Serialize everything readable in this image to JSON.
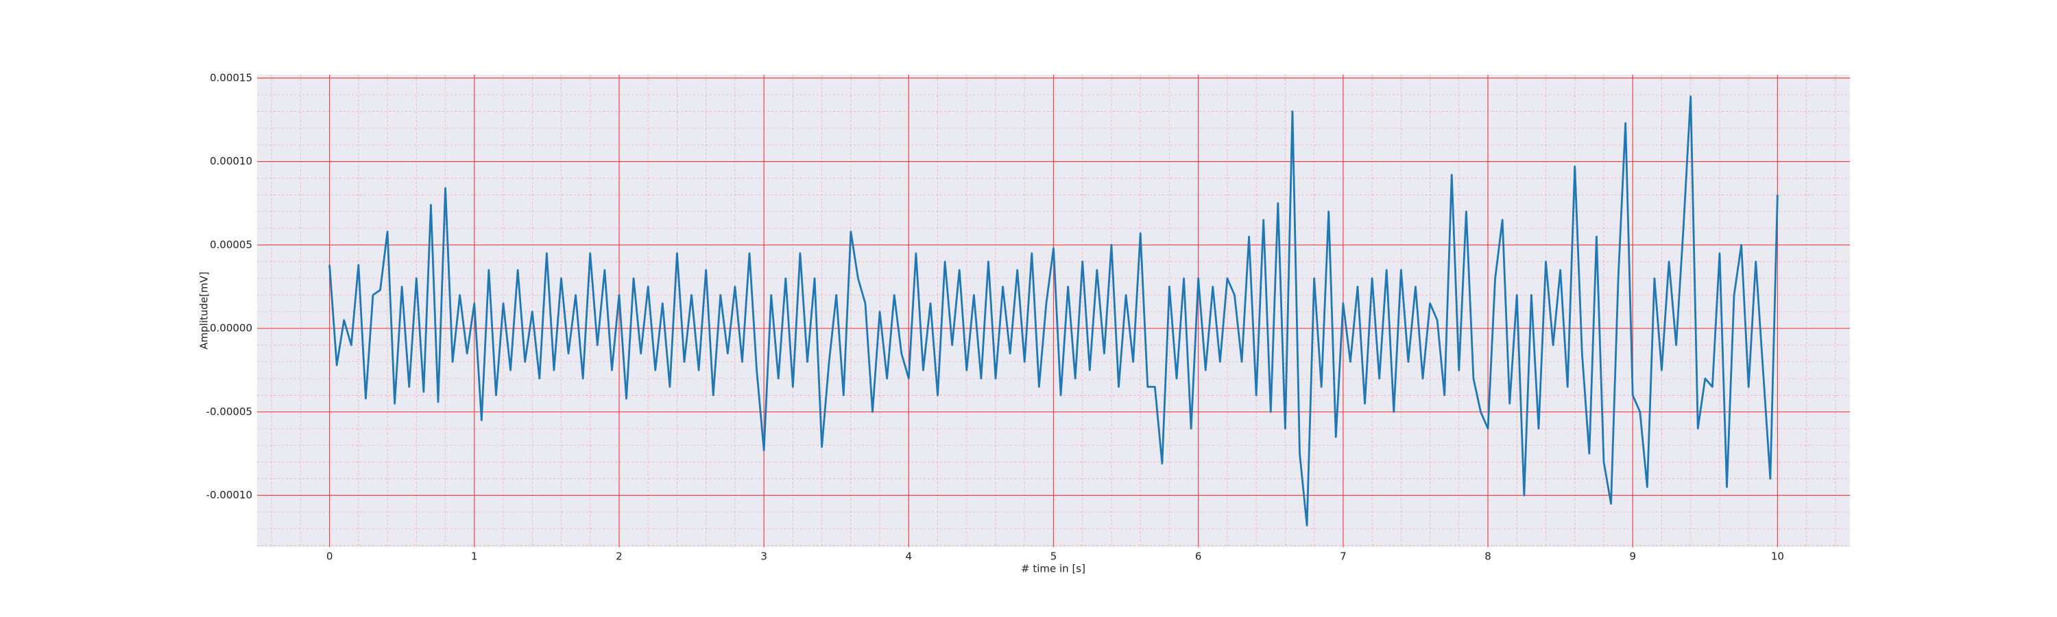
{
  "chart_data": {
    "type": "line",
    "xlabel": "# time in [s]",
    "ylabel": "Amplitude[mV]",
    "color": "#1f77b4",
    "grid": true,
    "minor_grid": true,
    "xlim": [
      -0.5,
      10.5
    ],
    "xticks": [
      0,
      1,
      2,
      3,
      4,
      5,
      6,
      7,
      8,
      9,
      10
    ],
    "ylim": [
      -0.000131,
      0.000152
    ],
    "yticks": [
      {
        "value": -0.0001,
        "label": "-0.00010"
      },
      {
        "value": -5e-05,
        "label": "-0.00005"
      },
      {
        "value": 0,
        "label": "0.00000"
      },
      {
        "value": 5e-05,
        "label": "0.00005"
      },
      {
        "value": 0.0001,
        "label": "0.00010"
      },
      {
        "value": 0.00015,
        "label": "0.00015"
      }
    ],
    "x": [
      0,
      0.05,
      0.1,
      0.15,
      0.2,
      0.25,
      0.3,
      0.35,
      0.4,
      0.45,
      0.5,
      0.55,
      0.6,
      0.65,
      0.7,
      0.75,
      0.8,
      0.85,
      0.9,
      0.95,
      1,
      1.05,
      1.1,
      1.15,
      1.2,
      1.25,
      1.3,
      1.35,
      1.4,
      1.45,
      1.5,
      1.55,
      1.6,
      1.65,
      1.7,
      1.75,
      1.8,
      1.85,
      1.9,
      1.95,
      2,
      2.05,
      2.1,
      2.15,
      2.2,
      2.25,
      2.3,
      2.35,
      2.4,
      2.45,
      2.5,
      2.55,
      2.6,
      2.65,
      2.7,
      2.75,
      2.8,
      2.85,
      2.9,
      2.95,
      3,
      3.05,
      3.1,
      3.15,
      3.2,
      3.25,
      3.3,
      3.35,
      3.4,
      3.45,
      3.5,
      3.55,
      3.6,
      3.65,
      3.7,
      3.75,
      3.8,
      3.85,
      3.9,
      3.95,
      4,
      4.05,
      4.1,
      4.15,
      4.2,
      4.25,
      4.3,
      4.35,
      4.4,
      4.45,
      4.5,
      4.55,
      4.6,
      4.65,
      4.7,
      4.75,
      4.8,
      4.85,
      4.9,
      4.95,
      5,
      5.05,
      5.1,
      5.15,
      5.2,
      5.25,
      5.3,
      5.35,
      5.4,
      5.45,
      5.5,
      5.55,
      5.6,
      5.65,
      5.7,
      5.75,
      5.8,
      5.85,
      5.9,
      5.95,
      6,
      6.05,
      6.1,
      6.15,
      6.2,
      6.25,
      6.3,
      6.35,
      6.4,
      6.45,
      6.5,
      6.55,
      6.6,
      6.65,
      6.7,
      6.75,
      6.8,
      6.85,
      6.9,
      6.95,
      7,
      7.05,
      7.1,
      7.15,
      7.2,
      7.25,
      7.3,
      7.35,
      7.4,
      7.45,
      7.5,
      7.55,
      7.6,
      7.65,
      7.7,
      7.75,
      7.8,
      7.85,
      7.9,
      7.95,
      8,
      8.05,
      8.1,
      8.15,
      8.2,
      8.25,
      8.3,
      8.35,
      8.4,
      8.45,
      8.5,
      8.55,
      8.6,
      8.65,
      8.7,
      8.75,
      8.8,
      8.85,
      8.9,
      8.95,
      9,
      9.05,
      9.1,
      9.15,
      9.2,
      9.25,
      9.3,
      9.35,
      9.4,
      9.45,
      9.5,
      9.55,
      9.6,
      9.65,
      9.7,
      9.75,
      9.8,
      9.85,
      9.9,
      9.95,
      10
    ],
    "values": [
      3.8e-05,
      -2.2e-05,
      5e-06,
      -1e-05,
      3.8e-05,
      -4.2e-05,
      2e-05,
      2.3e-05,
      5.8e-05,
      -4.5e-05,
      2.5e-05,
      -3.5e-05,
      3e-05,
      -3.8e-05,
      7.4e-05,
      -4.4e-05,
      8.4e-05,
      -2e-05,
      2e-05,
      -1.5e-05,
      1.5e-05,
      -5.5e-05,
      3.5e-05,
      -4e-05,
      1.5e-05,
      -2.5e-05,
      3.5e-05,
      -2e-05,
      1e-05,
      -3e-05,
      4.5e-05,
      -2.5e-05,
      3e-05,
      -1.5e-05,
      2e-05,
      -3e-05,
      4.5e-05,
      -1e-05,
      3.5e-05,
      -2.5e-05,
      2e-05,
      -4.2e-05,
      3e-05,
      -1.5e-05,
      2.5e-05,
      -2.5e-05,
      1.5e-05,
      -3.5e-05,
      4.5e-05,
      -2e-05,
      2e-05,
      -2.5e-05,
      3.5e-05,
      -4e-05,
      2e-05,
      -1.5e-05,
      2.5e-05,
      -2e-05,
      4.5e-05,
      -2.5e-05,
      -7.3e-05,
      2e-05,
      -3e-05,
      3e-05,
      -3.5e-05,
      4.5e-05,
      -2e-05,
      3e-05,
      -7.1e-05,
      -2e-05,
      2e-05,
      -4e-05,
      5.8e-05,
      3e-05,
      1.5e-05,
      -5e-05,
      1e-05,
      -3e-05,
      2e-05,
      -1.5e-05,
      -3e-05,
      4.5e-05,
      -2.5e-05,
      1.5e-05,
      -4e-05,
      4e-05,
      -1e-05,
      3.5e-05,
      -2.5e-05,
      2e-05,
      -3e-05,
      4e-05,
      -3e-05,
      2.5e-05,
      -1.5e-05,
      3.5e-05,
      -2e-05,
      4.5e-05,
      -3.5e-05,
      1.5e-05,
      4.8e-05,
      -4e-05,
      2.5e-05,
      -3e-05,
      4e-05,
      -2.5e-05,
      3.5e-05,
      -1.5e-05,
      5e-05,
      -3.5e-05,
      2e-05,
      -2e-05,
      5.7e-05,
      -3.5e-05,
      -3.5e-05,
      -8.1e-05,
      2.5e-05,
      -3e-05,
      3e-05,
      -6e-05,
      3e-05,
      -2.5e-05,
      2.5e-05,
      -2e-05,
      3e-05,
      2e-05,
      -2e-05,
      5.5e-05,
      -4e-05,
      6.5e-05,
      -5e-05,
      7.5e-05,
      -6e-05,
      0.00013,
      -7.5e-05,
      -0.000118,
      3e-05,
      -3.5e-05,
      7e-05,
      -6.5e-05,
      1.5e-05,
      -2e-05,
      2.5e-05,
      -4.5e-05,
      3e-05,
      -3e-05,
      3.5e-05,
      -5e-05,
      3.5e-05,
      -2e-05,
      2.5e-05,
      -3e-05,
      1.5e-05,
      5e-06,
      -4e-05,
      9.2e-05,
      -2.5e-05,
      7e-05,
      -3e-05,
      -5e-05,
      -6e-05,
      3e-05,
      6.5e-05,
      -4.5e-05,
      2e-05,
      -0.0001,
      2e-05,
      -6e-05,
      4e-05,
      -1e-05,
      3.5e-05,
      -3.5e-05,
      9.7e-05,
      -1.5e-05,
      -7.5e-05,
      5.5e-05,
      -8e-05,
      -0.000105,
      3e-05,
      0.000123,
      -4e-05,
      -5e-05,
      -9.5e-05,
      3e-05,
      -2.5e-05,
      4e-05,
      -1e-05,
      6e-05,
      0.000139,
      -6e-05,
      -3e-05,
      -3.5e-05,
      4.5e-05,
      -9.5e-05,
      2e-05,
      5e-05,
      -3.5e-05,
      4e-05,
      -2.5e-05,
      -9e-05,
      8e-05
    ]
  }
}
